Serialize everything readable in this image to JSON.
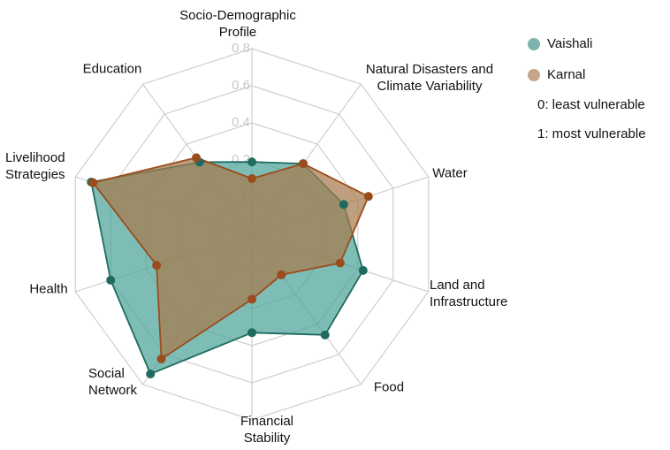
{
  "chart_data": {
    "type": "radar",
    "categories": [
      "Socio-Demographic Profile",
      "Natural Disasters and Climate Variability",
      "Water",
      "Land and Infrastructure",
      "Food",
      "Financial Stability",
      "Social Network",
      "Health",
      "Livelihood Strategies",
      "Education"
    ],
    "series": [
      {
        "name": "Vaishali",
        "color": "#1f6b60",
        "fill": "#4ba39a",
        "legend_color": "#7fb3ad",
        "values": [
          0.19,
          0.27,
          0.32,
          0.43,
          0.47,
          0.33,
          0.73,
          0.6,
          0.71,
          0.28
        ]
      },
      {
        "name": "Karnal",
        "color": "#9a4c1c",
        "fill": "#a87a4c",
        "legend_color": "#c4a68c",
        "values": [
          0.1,
          0.27,
          0.46,
          0.3,
          0.07,
          0.15,
          0.63,
          0.34,
          0.7,
          0.31
        ]
      }
    ],
    "ylim": [
      -0.2,
      0.8
    ],
    "yticks": [
      0,
      0.2,
      0.4,
      0.6,
      0.8
    ],
    "grid": true,
    "annotations": [
      "0: least vulnerable",
      "1: most vulnerable"
    ]
  }
}
